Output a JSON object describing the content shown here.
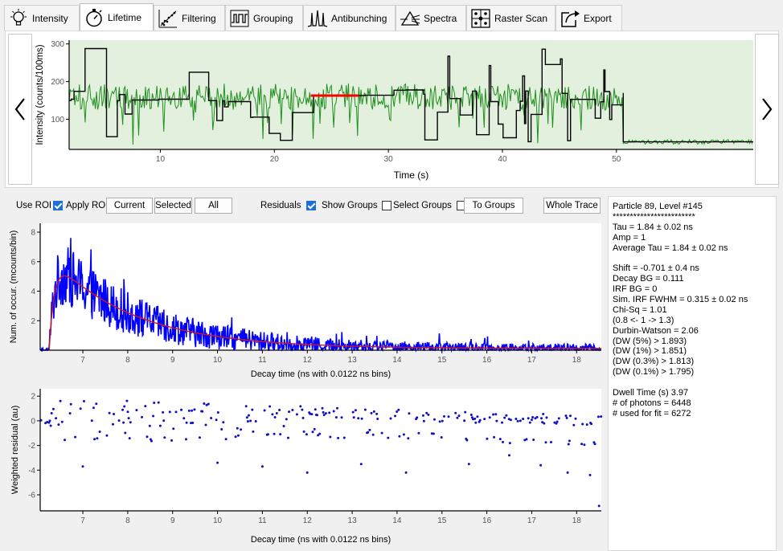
{
  "tabs": [
    {
      "label": "Intensity",
      "icon": "lightbulb-icon"
    },
    {
      "label": "Lifetime",
      "icon": "stopwatch-icon",
      "active": true
    },
    {
      "label": "Filtering",
      "icon": "scatter-filter-icon"
    },
    {
      "label": "Grouping",
      "icon": "grouping-icon"
    },
    {
      "label": "Antibunching",
      "icon": "antibunching-icon"
    },
    {
      "label": "Spectra",
      "icon": "spectra-icon"
    },
    {
      "label": "Raster Scan",
      "icon": "raster-scan-icon"
    },
    {
      "label": "Export",
      "icon": "export-icon"
    }
  ],
  "controls": {
    "use_roi": "Use ROI",
    "apply_roi": "Apply ROI",
    "apply_roi_checked": true,
    "current": "Current",
    "selected": "Selected",
    "all": "All",
    "residuals": "Residuals",
    "residuals_checked": true,
    "show_groups": "Show Groups",
    "show_groups_checked": false,
    "select_groups": "Select Groups",
    "select_groups_checked": false,
    "to_groups": "To Groups",
    "whole_trace": "Whole Trace"
  },
  "info": [
    "Particle 89, Level #145",
    "************************",
    "Tau = 1.84 ± 0.02 ns",
    "Amp = 1",
    "Average Tau = 1.84 ± 0.02 ns",
    "",
    "Shift = -0.701 ± 0.4 ns",
    "Decay BG = 0.111",
    "IRF BG = 0",
    "Sim. IRF FWHM = 0.315 ± 0.02 ns",
    "Chi-Sq = 1.01",
    "(0.8 <- 1 -> 1.3)",
    "Durbin-Watson = 2.06",
    "(DW (5%) > 1.893)",
    "(DW (1%) > 1.851)",
    "(DW (0.3%) > 1.813)",
    "(DW (0.1%) > 1.795)",
    "",
    "Dwell Time (s) 3.97",
    "# of photons = 6448",
    "# used for fit = 6272"
  ],
  "chart_data": [
    {
      "type": "line",
      "xlabel": "Time (s)",
      "ylabel": "Intensity (counts/100ms)",
      "xlim": [
        2,
        62
      ],
      "ylim": [
        20,
        310
      ],
      "xticks": [
        10,
        20,
        30,
        40,
        50
      ],
      "yticks": [
        100,
        200,
        300
      ],
      "colors": {
        "levels": "#000000",
        "trace": "#1f8f1f",
        "selected": "#ff0000",
        "roi": "#e3f0dd"
      },
      "selected_level": {
        "x": [
          23.2,
          27.4
        ],
        "y": 163
      },
      "final_level": {
        "x": [
          50.6,
          61.8
        ],
        "y": 40
      }
    },
    {
      "type": "line",
      "xlabel": "Decay time (ns with 0.0122 ns bins)",
      "ylabel": "Num. of occur. (mcounts/bin)",
      "xlim": [
        6.05,
        18.55
      ],
      "ylim": [
        0,
        8.6
      ],
      "xticks": [
        7,
        8,
        9,
        10,
        11,
        12,
        13,
        14,
        15,
        16,
        17,
        18
      ],
      "yticks": [
        2,
        4,
        6,
        8
      ],
      "colors": {
        "data": "#0000ff",
        "fit": "#d01818"
      },
      "tau": 1.84,
      "peak": {
        "x": 6.8,
        "y": 5.6
      }
    },
    {
      "type": "scatter",
      "xlabel": "Decay time (ns with 0.0122 ns bins)",
      "ylabel": "Weighted residual (au)",
      "xlim": [
        6.05,
        18.55
      ],
      "ylim": [
        -7.3,
        2.6
      ],
      "xticks": [
        7,
        8,
        9,
        10,
        11,
        12,
        13,
        14,
        15,
        16,
        17,
        18
      ],
      "yticks": [
        2,
        0,
        -2,
        -4,
        -6
      ],
      "colors": {
        "points": "#1010c0"
      }
    }
  ]
}
